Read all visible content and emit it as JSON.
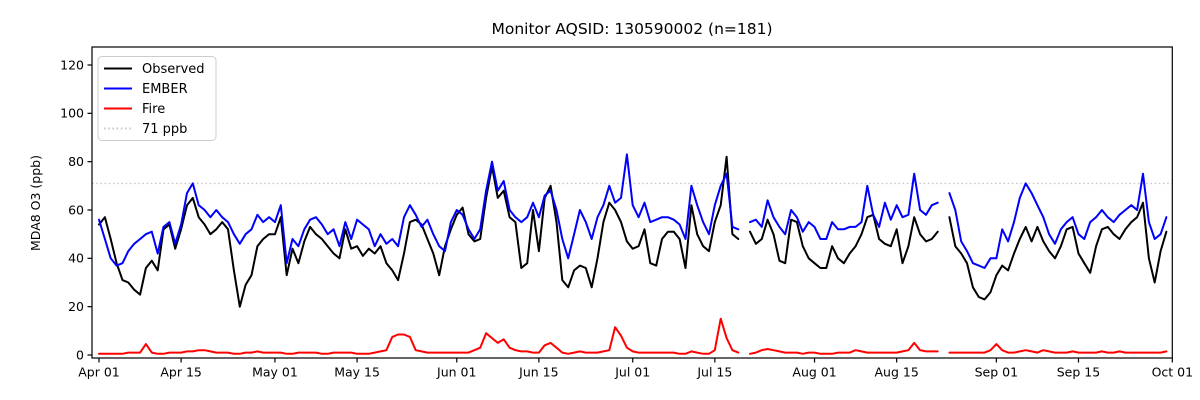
{
  "chart_data": {
    "type": "line",
    "title": "Monitor AQSID: 130590002 (n=181)",
    "ylabel": "MDA8 O3 (ppb)",
    "xlabel": "",
    "n_points": 181,
    "grid": false,
    "legend_position": "upper-left",
    "yticks": [
      0,
      20,
      40,
      60,
      80,
      100,
      120
    ],
    "ylim": [
      -1.2,
      127.4
    ],
    "xticks": [
      {
        "label": "Apr 01",
        "day": 0
      },
      {
        "label": "Apr 15",
        "day": 14
      },
      {
        "label": "May 01",
        "day": 30
      },
      {
        "label": "May 15",
        "day": 44
      },
      {
        "label": "Jun 01",
        "day": 61
      },
      {
        "label": "Jun 15",
        "day": 75
      },
      {
        "label": "Jul 01",
        "day": 91
      },
      {
        "label": "Jul 15",
        "day": 105
      },
      {
        "label": "Aug 01",
        "day": 122
      },
      {
        "label": "Aug 15",
        "day": 136
      },
      {
        "label": "Sep 01",
        "day": 153
      },
      {
        "label": "Sep 15",
        "day": 167
      },
      {
        "label": "Oct 01",
        "day": 183
      }
    ],
    "x_days_total": 183,
    "threshold": {
      "label": "71 ppb",
      "value": 71,
      "color": "#c9c9c9",
      "style": "dotted"
    },
    "series": [
      {
        "name": "Observed",
        "color": "#000000",
        "style": "solid",
        "values": [
          54,
          57,
          48,
          38,
          31,
          30,
          27,
          25,
          36,
          39,
          35,
          52,
          54,
          44,
          52,
          62,
          65,
          57,
          54,
          50,
          52,
          55,
          52,
          35,
          20,
          29,
          33,
          45,
          48,
          50,
          50,
          57,
          33,
          44,
          38,
          47,
          53,
          50,
          48,
          45,
          42,
          40,
          52,
          44,
          45,
          41,
          44,
          42,
          45,
          38,
          35,
          31,
          42,
          55,
          56,
          54,
          48,
          42,
          33,
          45,
          52,
          58,
          61,
          50,
          47,
          48,
          65,
          78,
          65,
          68,
          57,
          55,
          36,
          38,
          60,
          43,
          65,
          70,
          55,
          31,
          28,
          35,
          37,
          36,
          28,
          40,
          55,
          63,
          60,
          55,
          47,
          44,
          45,
          52,
          38,
          37,
          48,
          51,
          51,
          48,
          36,
          62,
          50,
          45,
          43,
          55,
          62,
          82,
          50,
          48,
          null,
          51,
          46,
          48,
          56,
          50,
          39,
          38,
          56,
          55,
          45,
          40,
          38,
          36,
          36,
          45,
          40,
          38,
          42,
          45,
          50,
          57,
          58,
          48,
          46,
          45,
          52,
          38,
          45,
          57,
          50,
          47,
          48,
          51,
          null,
          57,
          45,
          42,
          38,
          28,
          24,
          23,
          26,
          33,
          37,
          35,
          42,
          48,
          53,
          47,
          53,
          47,
          43,
          40,
          45,
          52,
          53,
          42,
          38,
          34,
          45,
          52,
          53,
          50,
          48,
          52,
          55,
          57,
          63,
          40,
          30,
          43,
          51
        ]
      },
      {
        "name": "EMBER",
        "color": "#0000ff",
        "style": "solid",
        "values": [
          56,
          48,
          40,
          37,
          38,
          43,
          46,
          48,
          50,
          51,
          42,
          53,
          55,
          46,
          54,
          67,
          71,
          62,
          60,
          57,
          60,
          57,
          55,
          50,
          46,
          50,
          52,
          58,
          55,
          57,
          55,
          62,
          38,
          48,
          45,
          52,
          56,
          57,
          54,
          50,
          52,
          45,
          55,
          48,
          56,
          54,
          52,
          45,
          50,
          46,
          48,
          45,
          57,
          62,
          58,
          53,
          56,
          50,
          45,
          43,
          55,
          60,
          58,
          52,
          48,
          52,
          68,
          80,
          68,
          72,
          60,
          57,
          55,
          57,
          63,
          57,
          66,
          68,
          60,
          48,
          40,
          50,
          60,
          55,
          48,
          57,
          62,
          70,
          63,
          65,
          83,
          62,
          57,
          63,
          55,
          56,
          57,
          57,
          56,
          54,
          48,
          70,
          62,
          55,
          50,
          62,
          70,
          75,
          53,
          52,
          null,
          55,
          56,
          53,
          64,
          57,
          53,
          50,
          60,
          57,
          51,
          55,
          53,
          48,
          48,
          55,
          52,
          52,
          53,
          53,
          55,
          70,
          58,
          53,
          63,
          56,
          62,
          57,
          58,
          75,
          60,
          58,
          62,
          63,
          null,
          67,
          60,
          47,
          43,
          38,
          37,
          36,
          40,
          40,
          52,
          47,
          55,
          65,
          71,
          67,
          62,
          57,
          50,
          46,
          52,
          55,
          57,
          50,
          48,
          55,
          57,
          60,
          57,
          55,
          58,
          60,
          62,
          60,
          75,
          55,
          48,
          50,
          57
        ]
      },
      {
        "name": "Fire",
        "color": "#ff0000",
        "style": "solid",
        "values": [
          0.5,
          0.5,
          0.5,
          0.5,
          0.5,
          1,
          1,
          1,
          4.5,
          1,
          0.5,
          0.5,
          1,
          1,
          1,
          1.5,
          1.5,
          2,
          2,
          1.5,
          1,
          1,
          1,
          0.5,
          0.5,
          1,
          1,
          1.5,
          1,
          1,
          1,
          1,
          0.5,
          0.5,
          1,
          1,
          1,
          1,
          0.5,
          0.5,
          1,
          1,
          1,
          1,
          0.5,
          0.5,
          0.5,
          1,
          1.5,
          2,
          7.5,
          8.5,
          8.5,
          7.5,
          2,
          1.5,
          1,
          1,
          1,
          1,
          1,
          1,
          1,
          1,
          2,
          3,
          9,
          7,
          5,
          6.5,
          3,
          2,
          1.5,
          1.5,
          1,
          1,
          4,
          5,
          3,
          1,
          0.5,
          1,
          1.5,
          1,
          1,
          1,
          1.5,
          2,
          11.5,
          8,
          3,
          1.5,
          1,
          1,
          1,
          1,
          1,
          1,
          1,
          0.5,
          0.5,
          1.5,
          1,
          0.5,
          0.5,
          2,
          15,
          7,
          2,
          1,
          null,
          0.5,
          1,
          2,
          2.5,
          2,
          1.5,
          1,
          1,
          1,
          0.5,
          1,
          1,
          0.5,
          0.5,
          0.5,
          1,
          1,
          1,
          2,
          1.5,
          1,
          1,
          1,
          1,
          1,
          1,
          1.5,
          2,
          5,
          2,
          1.5,
          1.5,
          1.5,
          null,
          1,
          1,
          1,
          1,
          1,
          1,
          1,
          2,
          4.5,
          2,
          1,
          1,
          1.5,
          2,
          1.5,
          1,
          2,
          1.5,
          1,
          1,
          1,
          1.5,
          1,
          1,
          1,
          1,
          1.5,
          1,
          1,
          1.5,
          1,
          1,
          1,
          1,
          1,
          1,
          1,
          1.5
        ]
      }
    ],
    "legend": {
      "entries": [
        {
          "label": "Observed",
          "color": "#000000",
          "style": "solid"
        },
        {
          "label": "EMBER",
          "color": "#0000ff",
          "style": "solid"
        },
        {
          "label": "Fire",
          "color": "#ff0000",
          "style": "solid"
        },
        {
          "label": "71 ppb",
          "color": "#c9c9c9",
          "style": "dotted"
        }
      ]
    }
  }
}
